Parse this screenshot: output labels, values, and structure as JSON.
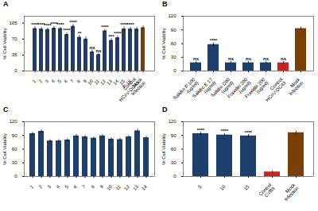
{
  "chart_data": [
    {
      "type": "bar",
      "title": "A",
      "categories": [
        "1",
        "2",
        "3",
        "4",
        "5",
        "6",
        "7",
        "8",
        "9",
        "10",
        "11",
        "12",
        "13",
        "14",
        "15",
        "P-18",
        "Control\nHCoV-OC43",
        "Mock\nInfection"
      ],
      "values": [
        93,
        92,
        91,
        94,
        93,
        80,
        98,
        74,
        70,
        42,
        36,
        88,
        67,
        73,
        92,
        92,
        92,
        95
      ],
      "errors": [
        4,
        4,
        3,
        4,
        3,
        4,
        4,
        4,
        5,
        4,
        3,
        3,
        4,
        4,
        5,
        4,
        4,
        4
      ],
      "annotations": [
        "****",
        "****",
        "****",
        "****",
        "****",
        "****",
        "****",
        "**",
        null,
        "ns",
        "ns",
        "****",
        "***",
        "****",
        "****",
        "****",
        null,
        null
      ],
      "colors": [
        "#1c3f6e",
        "#1c3f6e",
        "#1c3f6e",
        "#1c3f6e",
        "#1c3f6e",
        "#1c3f6e",
        "#1c3f6e",
        "#1c3f6e",
        "#1c3f6e",
        "#1c3f6e",
        "#1c3f6e",
        "#1c3f6e",
        "#1c3f6e",
        "#1c3f6e",
        "#1c3f6e",
        "#1c3f6e",
        "#1c3f6e",
        "#7B3F00"
      ],
      "ylim": [
        0,
        120
      ],
      "yticks": [
        0,
        35,
        70,
        105
      ],
      "ylabel": "% Cell Viability"
    },
    {
      "type": "bar",
      "title": "B",
      "categories": [
        "Salidro P 100\n(ug/ml)",
        "Salidro E 17\n(ug/ml)",
        "Salidro D90\n(ug/ml)",
        "Fraxidin 200\n(ug/ml)",
        "Fraxidin 200\n(ug/ml)",
        "Control\nHCoV-OC43",
        "Mock\nInfection"
      ],
      "values": [
        18,
        58,
        18,
        18,
        18,
        18,
        93
      ],
      "errors": [
        3,
        4,
        3,
        3,
        3,
        3,
        4
      ],
      "annotations": [
        "ns",
        "****",
        "ns",
        "ns",
        "ns",
        "ns",
        null
      ],
      "colors": [
        "#1c3f6e",
        "#1c3f6e",
        "#1c3f6e",
        "#1c3f6e",
        "#1c3f6e",
        "#cc2222",
        "#7B3F00"
      ],
      "ylim": [
        0,
        120
      ],
      "yticks": [
        0,
        30,
        60,
        90,
        120
      ],
      "ylabel": "% Cell Viability"
    },
    {
      "type": "bar",
      "title": "C",
      "categories": [
        "1",
        "2",
        "3",
        "4",
        "5",
        "6",
        "7",
        "8",
        "9",
        "10",
        "11",
        "12",
        "13",
        "14"
      ],
      "values": [
        94,
        99,
        78,
        78,
        80,
        89,
        87,
        84,
        89,
        82,
        81,
        87,
        100,
        85
      ],
      "errors": [
        3,
        4,
        3,
        3,
        3,
        3,
        3,
        3,
        3,
        3,
        3,
        3,
        4,
        3
      ],
      "colors": [
        "#1c3f6e",
        "#1c3f6e",
        "#1c3f6e",
        "#1c3f6e",
        "#1c3f6e",
        "#1c3f6e",
        "#1c3f6e",
        "#1c3f6e",
        "#1c3f6e",
        "#1c3f6e",
        "#1c3f6e",
        "#1c3f6e",
        "#1c3f6e",
        "#1c3f6e"
      ],
      "ylim": [
        0,
        120
      ],
      "yticks": [
        0,
        30,
        60,
        90,
        120
      ],
      "ylabel": "% Cell Viability"
    },
    {
      "type": "bar",
      "title": "D",
      "categories": [
        "5",
        "10",
        "15",
        "Control\nCVB3",
        "Mock\nInfection"
      ],
      "values": [
        94,
        91,
        89,
        10,
        96
      ],
      "errors": [
        3,
        3,
        3,
        2,
        3
      ],
      "annotations": [
        "****",
        "****",
        "****",
        null,
        null
      ],
      "colors": [
        "#1c3f6e",
        "#1c3f6e",
        "#1c3f6e",
        "#cc2222",
        "#7B3F00"
      ],
      "ylim": [
        0,
        120
      ],
      "yticks": [
        0,
        30,
        60,
        90,
        120
      ],
      "ylabel": "% Cell Viability"
    }
  ]
}
